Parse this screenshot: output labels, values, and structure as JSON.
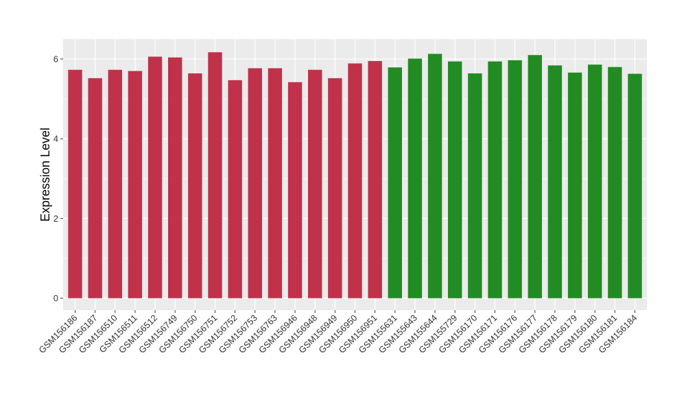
{
  "chart_data": {
    "type": "bar",
    "title": "",
    "xlabel": "",
    "ylabel": "Expression Level",
    "ylim": [
      -0.3,
      6.5
    ],
    "yticks": [
      0,
      2,
      4,
      6
    ],
    "grid": true,
    "legend": "none",
    "categories": [
      "GSM156186",
      "GSM156187",
      "GSM156510",
      "GSM156511",
      "GSM156512",
      "GSM156749",
      "GSM156750",
      "GSM156751",
      "GSM156752",
      "GSM156753",
      "GSM156763",
      "GSM156946",
      "GSM156948",
      "GSM156949",
      "GSM156950",
      "GSM156951",
      "GSM155631",
      "GSM155643",
      "GSM155644",
      "GSM155729",
      "GSM156170",
      "GSM156171",
      "GSM156176",
      "GSM156177",
      "GSM156178",
      "GSM156179",
      "GSM156180",
      "GSM156181",
      "GSM156184"
    ],
    "values": [
      5.73,
      5.52,
      5.73,
      5.7,
      6.06,
      6.04,
      5.64,
      6.17,
      5.47,
      5.77,
      5.77,
      5.42,
      5.73,
      5.52,
      5.89,
      5.95,
      5.79,
      6.01,
      6.13,
      5.94,
      5.64,
      5.94,
      5.97,
      6.1,
      5.84,
      5.66,
      5.86,
      5.8,
      5.63
    ],
    "groups": [
      0,
      0,
      0,
      0,
      0,
      0,
      0,
      0,
      0,
      0,
      0,
      0,
      0,
      0,
      0,
      0,
      1,
      1,
      1,
      1,
      1,
      1,
      1,
      1,
      1,
      1,
      1,
      1,
      1
    ],
    "colors": [
      "#c0314a",
      "#228b22"
    ],
    "panel_background": "#ebebeb",
    "grid_color": "#ffffff"
  }
}
